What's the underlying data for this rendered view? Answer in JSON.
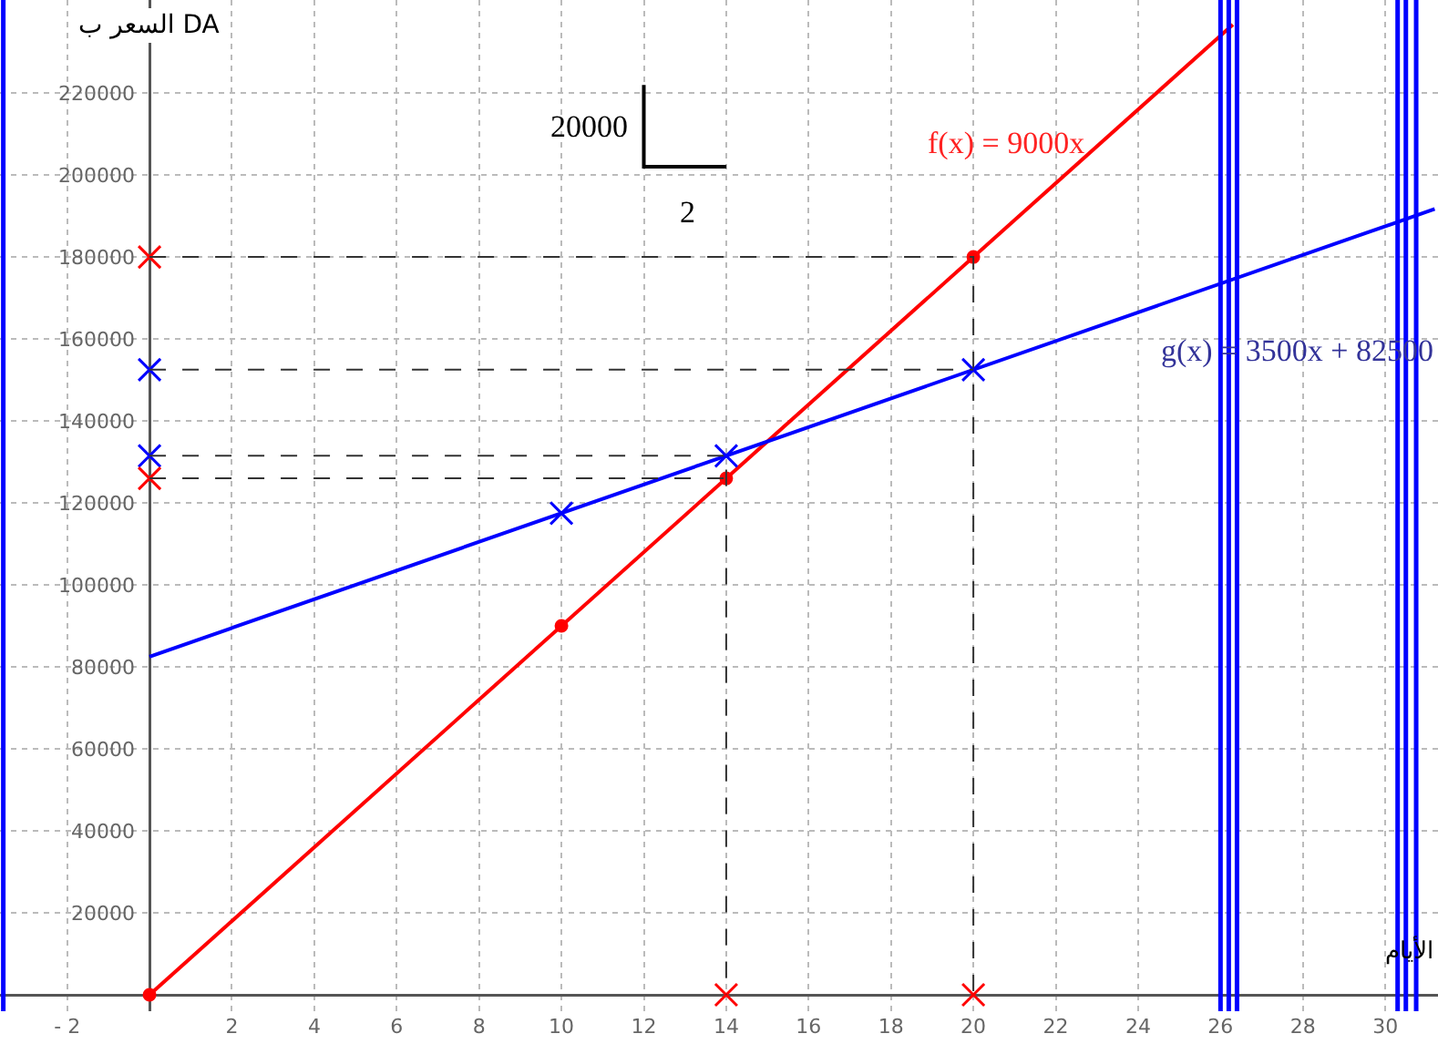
{
  "chart_data": {
    "type": "line",
    "xlabel": "الأيام",
    "ylabel": "السعر ب DA",
    "xlim": [
      -3.63,
      31.28
    ],
    "ylim": [
      -4000,
      242700
    ],
    "xticks": [
      {
        "value": -2,
        "label": "- 2"
      },
      {
        "value": 0,
        "label": null
      },
      2,
      4,
      6,
      8,
      10,
      12,
      14,
      16,
      18,
      20,
      22,
      24,
      26,
      28,
      30
    ],
    "yticks": [
      {
        "value": 0,
        "label": null
      },
      20000,
      40000,
      60000,
      80000,
      100000,
      120000,
      140000,
      160000,
      180000,
      200000,
      220000
    ],
    "grid": true,
    "marker": "none",
    "line_style": "solid",
    "series": [
      {
        "color": "#ff0000",
        "x": [
          0,
          26.3
        ],
        "values": [
          0,
          236700
        ]
      },
      {
        "color": "#0000ff",
        "x": [
          0,
          31.2
        ],
        "values": [
          82500,
          191700
        ]
      },
      {
        "type": "scatter",
        "marker": "circle",
        "color": "#ff0000",
        "x": [
          0,
          10,
          14,
          20
        ],
        "values": [
          0,
          90000,
          126000,
          180000
        ]
      },
      {
        "type": "scatter",
        "marker": "cross",
        "color": "#0000ff",
        "x": [
          10,
          14,
          20,
          0,
          0
        ],
        "values": [
          117500,
          131500,
          152500,
          152500,
          131500
        ]
      },
      {
        "type": "scatter",
        "marker": "cross",
        "color": "#ff0000",
        "x": [
          0,
          0,
          14,
          20
        ],
        "values": [
          180000,
          126000,
          0,
          0
        ]
      },
      {
        "color": "#333333",
        "line_style": "dashed",
        "x": [
          0,
          20,
          20,
          null,
          0,
          20,
          null,
          0,
          14,
          14,
          null,
          0,
          14
        ],
        "values": [
          180000,
          180000,
          0,
          null,
          152500,
          152500,
          null,
          131500,
          131500,
          0,
          null,
          126000,
          126000
        ]
      },
      {
        "color": "#000000",
        "x": [
          12,
          12,
          14
        ],
        "values": [
          222000,
          202000,
          202000
        ]
      }
    ],
    "ref_lines": [
      {
        "axis": "x",
        "value": -3.55,
        "color": "#0000ff"
      },
      {
        "axis": "x",
        "value": 26,
        "color": "#0000ff"
      },
      {
        "axis": "x",
        "value": 26.2,
        "color": "#0000ff"
      },
      {
        "axis": "x",
        "value": 26.4,
        "color": "#0000ff"
      },
      {
        "axis": "x",
        "value": 30.3,
        "color": "#0000ff"
      },
      {
        "axis": "x",
        "value": 30.5,
        "color": "#0000ff"
      },
      {
        "axis": "x",
        "value": 30.75,
        "color": "#0000ff"
      }
    ],
    "annotations": [
      "20000",
      "2",
      "f(x) = 9000x",
      "g(x) = 3500x + 82500"
    ]
  }
}
